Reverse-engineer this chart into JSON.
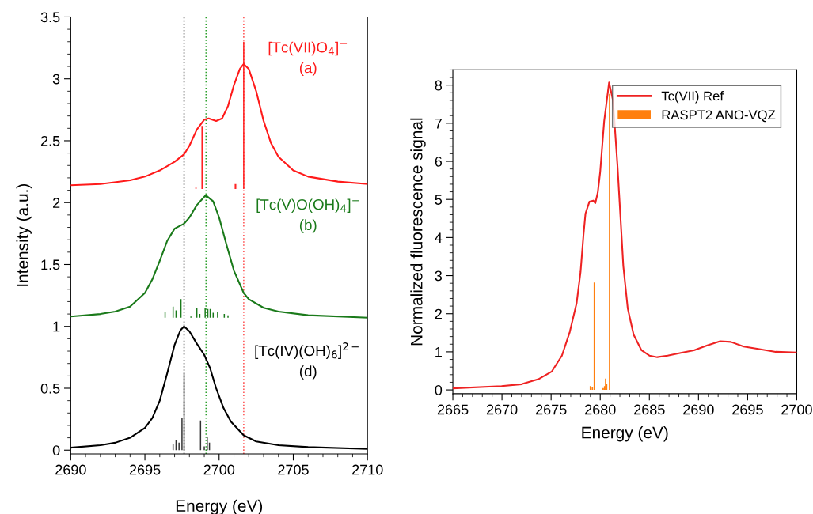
{
  "chart_data": [
    {
      "type": "line",
      "xlabel": "Energy (eV)",
      "ylabel": "Intensity (a.u.)",
      "xlim": [
        2690,
        2710
      ],
      "ylim": [
        -0.03,
        3.5
      ],
      "xticks": [
        2690,
        2695,
        2700,
        2705,
        2710
      ],
      "yticks": [
        0,
        0.5,
        1,
        1.5,
        2,
        2.5,
        3,
        3.5
      ],
      "grid": false,
      "legend": false,
      "line_style": "solid",
      "marker": "none",
      "series": [
        {
          "name": "[Tc(VII)O$_{4}$]$^{−}$\n(a)",
          "color": "#ff1a1a",
          "x": [
            2690,
            2692,
            2694,
            2695,
            2696,
            2697,
            2697.64,
            2698,
            2698.5,
            2699,
            2699.3,
            2699.8,
            2700.2,
            2700.6,
            2701,
            2701.4,
            2701.66,
            2702,
            2702.5,
            2703,
            2703.5,
            2704,
            2705,
            2706,
            2708,
            2710
          ],
          "values": [
            2.14,
            2.15,
            2.18,
            2.21,
            2.26,
            2.33,
            2.39,
            2.46,
            2.59,
            2.67,
            2.68,
            2.66,
            2.68,
            2.78,
            2.95,
            3.08,
            3.12,
            3.08,
            2.9,
            2.66,
            2.48,
            2.37,
            2.26,
            2.21,
            2.17,
            2.15
          ]
        },
        {
          "name": "[Tc(V)O(OH)$_{4}$]$^{−}$\n(b)",
          "color": "#1a7a1a",
          "x": [
            2690,
            2692,
            2693,
            2694,
            2695,
            2695.5,
            2696,
            2696.5,
            2697,
            2697.64,
            2698,
            2698.5,
            2699.1,
            2699.6,
            2700,
            2700.5,
            2701,
            2701.66,
            2702,
            2703,
            2704,
            2706,
            2710
          ],
          "values": [
            1.08,
            1.1,
            1.12,
            1.16,
            1.27,
            1.38,
            1.53,
            1.69,
            1.79,
            1.83,
            1.88,
            1.98,
            2.06,
            2.01,
            1.88,
            1.66,
            1.45,
            1.27,
            1.22,
            1.15,
            1.12,
            1.09,
            1.07
          ]
        },
        {
          "name": "[Tc(IV)(OH)$_{6}$]$^{2−}$\n(d)",
          "color": "#000000",
          "x": [
            2690,
            2692,
            2693,
            2694,
            2695,
            2695.5,
            2696,
            2696.5,
            2697,
            2697.4,
            2697.64,
            2698,
            2698.5,
            2699,
            2699.4,
            2699.8,
            2700.3,
            2700.8,
            2701.66,
            2702.5,
            2704,
            2706,
            2710
          ],
          "values": [
            0.02,
            0.04,
            0.06,
            0.1,
            0.18,
            0.26,
            0.4,
            0.62,
            0.85,
            0.97,
            1.0,
            0.96,
            0.86,
            0.77,
            0.66,
            0.5,
            0.34,
            0.23,
            0.12,
            0.07,
            0.04,
            0.025,
            0.01
          ]
        },
        {
          "type": "bar",
          "color": "#ff1a1a",
          "x": [
            2698.44,
            2698.85,
            2701.09,
            2701.2,
            2701.66
          ],
          "base": [
            2.11,
            2.11,
            2.11,
            2.11,
            2.11
          ],
          "values": [
            0.02,
            0.51,
            0.04,
            0.04,
            1.19
          ]
        },
        {
          "type": "bar",
          "color": "#1a7a1a",
          "x": [
            2696.36,
            2696.9,
            2697.1,
            2697.43,
            2698.1,
            2698.5,
            2698.7,
            2699.06,
            2699.24,
            2699.4,
            2699.6,
            2699.9,
            2700.35,
            2700.6
          ],
          "base": [
            1.07,
            1.07,
            1.07,
            1.07,
            1.07,
            1.07,
            1.07,
            1.07,
            1.07,
            1.07,
            1.07,
            1.07,
            1.07,
            1.07
          ],
          "values": [
            0.05,
            0.09,
            0.06,
            0.15,
            0.01,
            0.08,
            0.03,
            0.08,
            0.07,
            0.07,
            0.04,
            0.05,
            0.03,
            0.02
          ]
        },
        {
          "type": "bar",
          "color": "#333333",
          "x": [
            2696.9,
            2697.1,
            2697.3,
            2697.5,
            2697.64,
            2698.75,
            2699.0,
            2699.2,
            2699.35
          ],
          "values": [
            0.05,
            0.08,
            0.06,
            0.26,
            0.62,
            0.24,
            0.03,
            0.11,
            0.06
          ]
        }
      ],
      "ref_lines": [
        {
          "axis": "x",
          "value": 2697.64,
          "color": "#333333",
          "line_style": "dotted"
        },
        {
          "axis": "x",
          "value": 2699.12,
          "color": "#2ca02c",
          "line_style": "dotted"
        },
        {
          "axis": "x",
          "value": 2701.66,
          "color": "#ff4d4d",
          "line_style": "dotted"
        }
      ]
    },
    {
      "type": "line",
      "xlabel": "Energy (eV)",
      "ylabel": "Normalized fluorescence signal",
      "xlim": [
        2665,
        2700
      ],
      "ylim": [
        -0.1,
        8.4
      ],
      "xticks": [
        2665,
        2670,
        2675,
        2680,
        2685,
        2690,
        2695,
        2700
      ],
      "yticks": [
        0,
        1,
        2,
        3,
        4,
        5,
        6,
        7,
        8
      ],
      "grid": false,
      "legend": "top right",
      "line_style": "solid",
      "marker": "none",
      "series": [
        {
          "name": "Tc(VII) Ref",
          "color": "#ee2222",
          "x": [
            2665,
            2669.96,
            2672,
            2673.7,
            2675.06,
            2676.1,
            2676.9,
            2677.6,
            2678.0,
            2678.3,
            2678.5,
            2678.9,
            2679.3,
            2679.5,
            2679.75,
            2680.0,
            2680.4,
            2680.9,
            2681.3,
            2681.76,
            2682.35,
            2682.8,
            2683.4,
            2684.2,
            2685.0,
            2685.8,
            2686.86,
            2688.2,
            2689.54,
            2690.9,
            2692.2,
            2693.3,
            2694.6,
            2696.2,
            2697.85,
            2700
          ],
          "values": [
            0.04,
            0.1,
            0.15,
            0.28,
            0.48,
            0.9,
            1.52,
            2.28,
            3.1,
            4.08,
            4.63,
            4.94,
            4.97,
            4.9,
            5.18,
            5.73,
            7.05,
            8.07,
            7.6,
            5.87,
            3.25,
            2.14,
            1.45,
            1.04,
            0.9,
            0.86,
            0.9,
            0.97,
            1.04,
            1.17,
            1.28,
            1.26,
            1.14,
            1.07,
            1.0,
            0.98
          ]
        },
        {
          "type": "bar",
          "name": "RASPT2 ANO-VQZ",
          "color": "#ff7f0e",
          "x": [
            2679.0,
            2679.2,
            2679.4,
            2680.3,
            2680.45,
            2680.55,
            2680.65,
            2680.95
          ],
          "values": [
            0.1,
            0.08,
            2.82,
            0.05,
            0.1,
            0.3,
            0.17,
            7.77
          ]
        }
      ]
    }
  ]
}
